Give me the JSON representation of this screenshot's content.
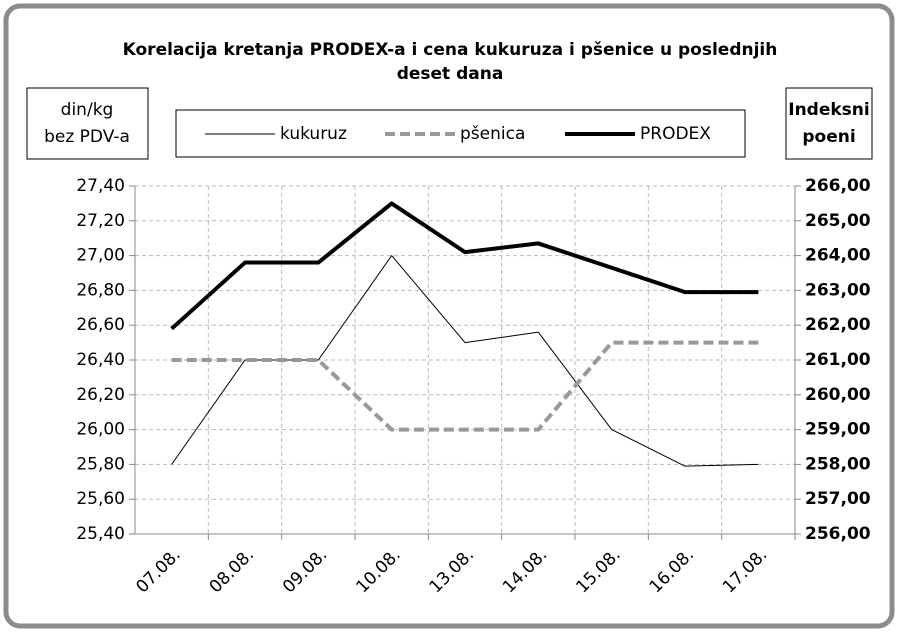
{
  "chart_data": {
    "type": "line",
    "title": [
      "Korelacija kretanja PRODEX-a i cena kukuruza i pšenice u poslednjih",
      "deset dana"
    ],
    "y_label": [
      "din/kg",
      "bez PDV-a"
    ],
    "y2_label": [
      "Indeksni",
      "poeni"
    ],
    "categories": [
      "07.08.",
      "08.08.",
      "09.08.",
      "10.08.",
      "13.08.",
      "14.08.",
      "15.08.",
      "16.08.",
      "17.08."
    ],
    "series": [
      {
        "name": "kukuruz",
        "color": "#000000",
        "line_width": 1,
        "line_style": "solid",
        "values": [
          25.8,
          26.4,
          26.4,
          27.0,
          26.5,
          26.56,
          26.0,
          25.79,
          25.8
        ]
      },
      {
        "name": "pšenica",
        "color": "#999999",
        "line_width": 4,
        "line_style": "dashed",
        "values": [
          26.4,
          26.4,
          26.4,
          26.0,
          26.0,
          26.0,
          26.5,
          26.5,
          26.5
        ]
      },
      {
        "name": "PRODEX",
        "color": "#000000",
        "line_width": 4,
        "line_style": "solid",
        "axis": "y2",
        "values": [
          261.9,
          263.8,
          263.8,
          265.5,
          264.1,
          264.35,
          263.65,
          262.95,
          262.95
        ]
      }
    ],
    "ylim": [
      25.4,
      27.4
    ],
    "yticks": [
      {
        "value": 25.4,
        "label": "25,40"
      },
      {
        "value": 25.6,
        "label": "25,60"
      },
      {
        "value": 25.8,
        "label": "25,80"
      },
      {
        "value": 26.0,
        "label": "26,00"
      },
      {
        "value": 26.2,
        "label": "26,20"
      },
      {
        "value": 26.4,
        "label": "26,40"
      },
      {
        "value": 26.6,
        "label": "26,60"
      },
      {
        "value": 26.8,
        "label": "26,80"
      },
      {
        "value": 27.0,
        "label": "27,00"
      },
      {
        "value": 27.2,
        "label": "27,20"
      },
      {
        "value": 27.4,
        "label": "27,40"
      }
    ],
    "y2lim": [
      256,
      266
    ],
    "y2ticks": [
      {
        "value": 256,
        "label": "256,00"
      },
      {
        "value": 257,
        "label": "257,00"
      },
      {
        "value": 258,
        "label": "258,00"
      },
      {
        "value": 259,
        "label": "259,00"
      },
      {
        "value": 260,
        "label": "260,00"
      },
      {
        "value": 261,
        "label": "261,00"
      },
      {
        "value": 262,
        "label": "262,00"
      },
      {
        "value": 263,
        "label": "263,00"
      },
      {
        "value": 264,
        "label": "264,00"
      },
      {
        "value": 265,
        "label": "265,00"
      },
      {
        "value": 266,
        "label": "266,00"
      }
    ],
    "grid": true,
    "legend": "top"
  }
}
